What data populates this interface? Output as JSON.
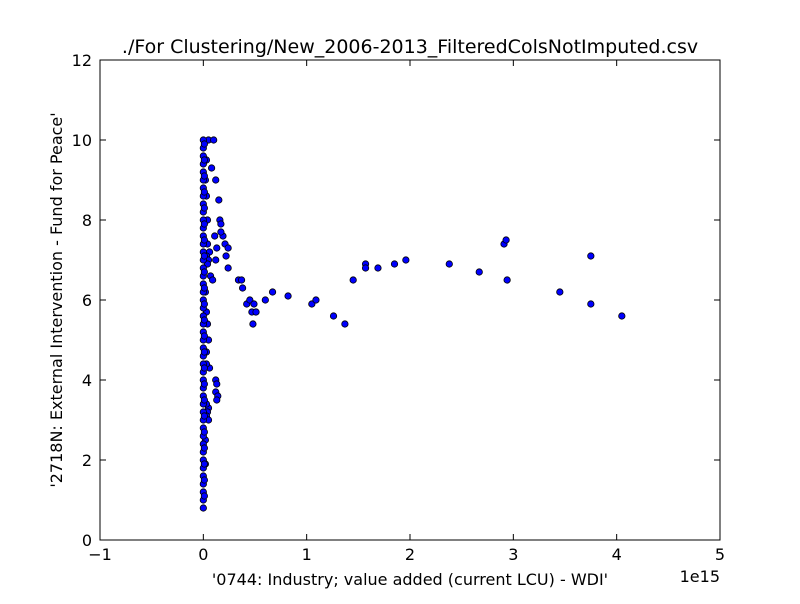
{
  "chart_data": {
    "type": "scatter",
    "title": "./For Clustering/New_2006-2013_FilteredColsNotImputed.csv",
    "xlabel": "'0744: Industry; value added  (current LCU) - WDI'",
    "ylabel": "'2718N: External Intervention - Fund for Peace'",
    "x_offset_label": "1e15",
    "xlim": [
      -1,
      5
    ],
    "ylim": [
      0,
      12
    ],
    "x_ticks": [
      -1,
      0,
      1,
      2,
      3,
      4,
      5
    ],
    "x_tick_labels": [
      "−1",
      "0",
      "1",
      "2",
      "3",
      "4",
      "5"
    ],
    "y_ticks": [
      0,
      2,
      4,
      6,
      8,
      10,
      12
    ],
    "y_tick_labels": [
      "0",
      "2",
      "4",
      "6",
      "8",
      "10",
      "12"
    ],
    "grid": false,
    "legend": "none",
    "marker_color": "#0000ff",
    "marker_edge": "#000000",
    "series": [
      {
        "points": [
          [
            0.05,
            10.0
          ],
          [
            0.1,
            10.0
          ],
          [
            0.03,
            9.5
          ],
          [
            0.08,
            9.3
          ],
          [
            0.12,
            9.0
          ],
          [
            0.15,
            8.5
          ],
          [
            0.16,
            8.0
          ],
          [
            0.17,
            7.9
          ],
          [
            0.19,
            7.6
          ],
          [
            0.17,
            7.7
          ],
          [
            0.11,
            7.6
          ],
          [
            0.13,
            7.3
          ],
          [
            0.21,
            7.4
          ],
          [
            0.24,
            7.3
          ],
          [
            0.22,
            7.1
          ],
          [
            0.06,
            7.2
          ],
          [
            0.03,
            7.1
          ],
          [
            0.05,
            7.0
          ],
          [
            0.04,
            6.9
          ],
          [
            0.12,
            7.0
          ],
          [
            0.24,
            6.8
          ],
          [
            0.07,
            6.6
          ],
          [
            0.09,
            6.5
          ],
          [
            0.34,
            6.5
          ],
          [
            0.37,
            6.5
          ],
          [
            0.38,
            6.3
          ],
          [
            0.42,
            5.9
          ],
          [
            0.45,
            6.0
          ],
          [
            0.49,
            5.9
          ],
          [
            0.47,
            5.7
          ],
          [
            0.51,
            5.7
          ],
          [
            0.48,
            5.4
          ],
          [
            0.6,
            6.0
          ],
          [
            0.67,
            6.2
          ],
          [
            0.82,
            6.1
          ],
          [
            1.05,
            5.9
          ],
          [
            1.09,
            6.0
          ],
          [
            1.26,
            5.6
          ],
          [
            1.37,
            5.4
          ],
          [
            1.45,
            6.5
          ],
          [
            1.57,
            6.9
          ],
          [
            1.57,
            6.8
          ],
          [
            1.69,
            6.8
          ],
          [
            1.85,
            6.9
          ],
          [
            1.96,
            7.0
          ],
          [
            2.38,
            6.9
          ],
          [
            2.67,
            6.7
          ],
          [
            2.91,
            7.4
          ],
          [
            2.93,
            7.5
          ],
          [
            2.94,
            6.5
          ],
          [
            3.45,
            6.2
          ],
          [
            3.75,
            7.1
          ],
          [
            3.75,
            5.9
          ],
          [
            4.05,
            5.6
          ],
          [
            0.05,
            5.0
          ],
          [
            0.03,
            4.7
          ],
          [
            0.06,
            4.3
          ],
          [
            0.12,
            4.0
          ],
          [
            0.13,
            3.9
          ],
          [
            0.12,
            3.7
          ],
          [
            0.14,
            3.6
          ],
          [
            0.13,
            3.5
          ],
          [
            0.05,
            3.3
          ],
          [
            0.04,
            3.2
          ],
          [
            0.03,
            3.1
          ],
          [
            0.05,
            3.0
          ],
          [
            0.03,
            3.4
          ],
          [
            0.04,
            5.4
          ],
          [
            0.03,
            5.7
          ],
          [
            0.02,
            6.2
          ],
          [
            0.04,
            8.0
          ],
          [
            0.03,
            8.6
          ],
          [
            0.02,
            9.0
          ],
          [
            0.04,
            7.4
          ],
          [
            0.03,
            4.4
          ],
          [
            0.02,
            2.5
          ],
          [
            0.02,
            1.9
          ],
          [
            0.0,
            10.0
          ],
          [
            0.0,
            9.8
          ],
          [
            0.0,
            9.6
          ],
          [
            0.0,
            9.4
          ],
          [
            0.0,
            9.2
          ],
          [
            0.0,
            9.0
          ],
          [
            0.0,
            8.8
          ],
          [
            0.0,
            8.6
          ],
          [
            0.0,
            8.4
          ],
          [
            0.0,
            8.2
          ],
          [
            0.0,
            8.0
          ],
          [
            0.0,
            7.8
          ],
          [
            0.0,
            7.6
          ],
          [
            0.0,
            7.4
          ],
          [
            0.0,
            7.2
          ],
          [
            0.0,
            7.0
          ],
          [
            0.0,
            6.8
          ],
          [
            0.0,
            6.6
          ],
          [
            0.0,
            6.4
          ],
          [
            0.0,
            6.2
          ],
          [
            0.0,
            6.0
          ],
          [
            0.0,
            5.8
          ],
          [
            0.0,
            5.6
          ],
          [
            0.0,
            5.4
          ],
          [
            0.0,
            5.2
          ],
          [
            0.0,
            5.0
          ],
          [
            0.0,
            4.8
          ],
          [
            0.0,
            4.6
          ],
          [
            0.0,
            4.4
          ],
          [
            0.0,
            4.2
          ],
          [
            0.0,
            4.0
          ],
          [
            0.0,
            3.8
          ],
          [
            0.0,
            3.6
          ],
          [
            0.0,
            3.4
          ],
          [
            0.0,
            3.2
          ],
          [
            0.0,
            3.0
          ],
          [
            0.0,
            2.8
          ],
          [
            0.0,
            2.6
          ],
          [
            0.0,
            2.4
          ],
          [
            0.0,
            2.2
          ],
          [
            0.0,
            2.0
          ],
          [
            0.0,
            1.8
          ],
          [
            0.0,
            1.6
          ],
          [
            0.0,
            1.4
          ],
          [
            0.0,
            1.2
          ],
          [
            0.0,
            1.0
          ],
          [
            0.0,
            0.8
          ],
          [
            0.01,
            9.9
          ],
          [
            0.01,
            9.5
          ],
          [
            0.01,
            9.1
          ],
          [
            0.01,
            8.7
          ],
          [
            0.01,
            8.3
          ],
          [
            0.01,
            7.9
          ],
          [
            0.01,
            7.5
          ],
          [
            0.01,
            7.1
          ],
          [
            0.01,
            6.7
          ],
          [
            0.01,
            6.3
          ],
          [
            0.01,
            5.9
          ],
          [
            0.01,
            5.5
          ],
          [
            0.01,
            5.1
          ],
          [
            0.01,
            4.7
          ],
          [
            0.01,
            4.3
          ],
          [
            0.01,
            3.9
          ],
          [
            0.01,
            3.5
          ],
          [
            0.01,
            3.1
          ],
          [
            0.01,
            2.7
          ],
          [
            0.01,
            2.3
          ],
          [
            0.01,
            1.9
          ],
          [
            0.01,
            1.5
          ],
          [
            0.01,
            1.1
          ]
        ]
      }
    ]
  }
}
